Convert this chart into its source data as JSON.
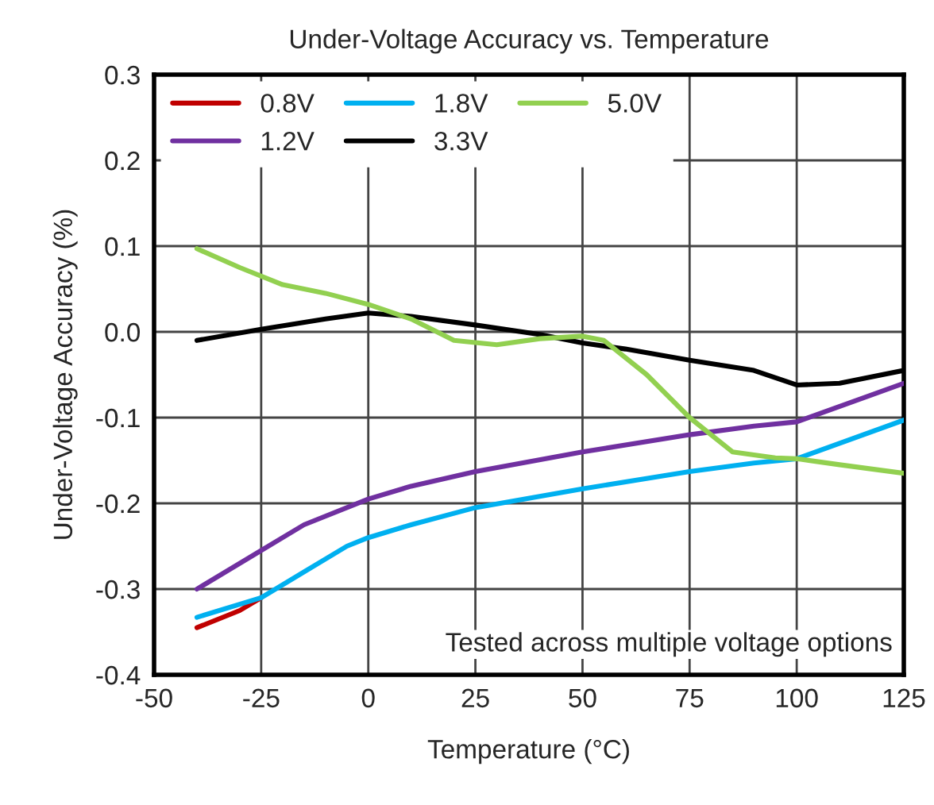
{
  "chart_data": {
    "type": "line",
    "title": "Under-Voltage Accuracy vs. Temperature",
    "xlabel": "Temperature (°C)",
    "ylabel": "Under-Voltage Accuracy (%)",
    "xlim": [
      -50,
      125
    ],
    "xticks": [
      -50,
      -25,
      0,
      25,
      50,
      75,
      100,
      125
    ],
    "ylim": [
      -0.4,
      0.3
    ],
    "yticks": [
      {
        "value": -0.4,
        "label": "-0.4"
      },
      {
        "value": -0.3,
        "label": "-0.3"
      },
      {
        "value": -0.2,
        "label": "-0.2"
      },
      {
        "value": -0.1,
        "label": "-0.1"
      },
      {
        "value": 0,
        "label": "0.0"
      },
      {
        "value": 0.1,
        "label": "0.1"
      },
      {
        "value": 0.2,
        "label": "0.2"
      },
      {
        "value": 0.3,
        "label": "0.3"
      }
    ],
    "grid": true,
    "legend": "top left",
    "annotations": [
      "Tested across multiple voltage options"
    ],
    "series": [
      {
        "name": "0.8V",
        "color": "#c00000",
        "x": [
          -40,
          -30,
          -25
        ],
        "values": [
          -0.345,
          -0.325,
          -0.31
        ]
      },
      {
        "name": "1.2V",
        "color": "#7030a0",
        "x": [
          -40,
          -25,
          -15,
          0,
          10,
          25,
          50,
          75,
          90,
          100,
          125
        ],
        "values": [
          -0.3,
          -0.255,
          -0.225,
          -0.195,
          -0.18,
          -0.163,
          -0.14,
          -0.12,
          -0.11,
          -0.105,
          -0.06
        ]
      },
      {
        "name": "1.8V",
        "color": "#00b0f0",
        "x": [
          -40,
          -25,
          -15,
          -5,
          0,
          10,
          25,
          50,
          75,
          90,
          100,
          125
        ],
        "values": [
          -0.333,
          -0.31,
          -0.28,
          -0.25,
          -0.24,
          -0.225,
          -0.205,
          -0.183,
          -0.163,
          -0.153,
          -0.148,
          -0.103
        ]
      },
      {
        "name": "3.3V",
        "color": "#000000",
        "x": [
          -40,
          -25,
          -10,
          0,
          10,
          25,
          40,
          50,
          60,
          75,
          90,
          100,
          110,
          125
        ],
        "values": [
          -0.01,
          0.003,
          0.015,
          0.022,
          0.018,
          0.008,
          -0.003,
          -0.013,
          -0.02,
          -0.033,
          -0.045,
          -0.062,
          -0.06,
          -0.045
        ]
      },
      {
        "name": "5.0V",
        "color": "#92d050",
        "x": [
          -40,
          -30,
          -20,
          -10,
          0,
          10,
          20,
          30,
          40,
          50,
          55,
          65,
          75,
          85,
          95,
          100,
          110,
          125
        ],
        "values": [
          0.097,
          0.075,
          0.055,
          0.045,
          0.032,
          0.015,
          -0.01,
          -0.015,
          -0.008,
          -0.005,
          -0.01,
          -0.05,
          -0.1,
          -0.14,
          -0.147,
          -0.148,
          -0.155,
          -0.165
        ]
      }
    ]
  }
}
